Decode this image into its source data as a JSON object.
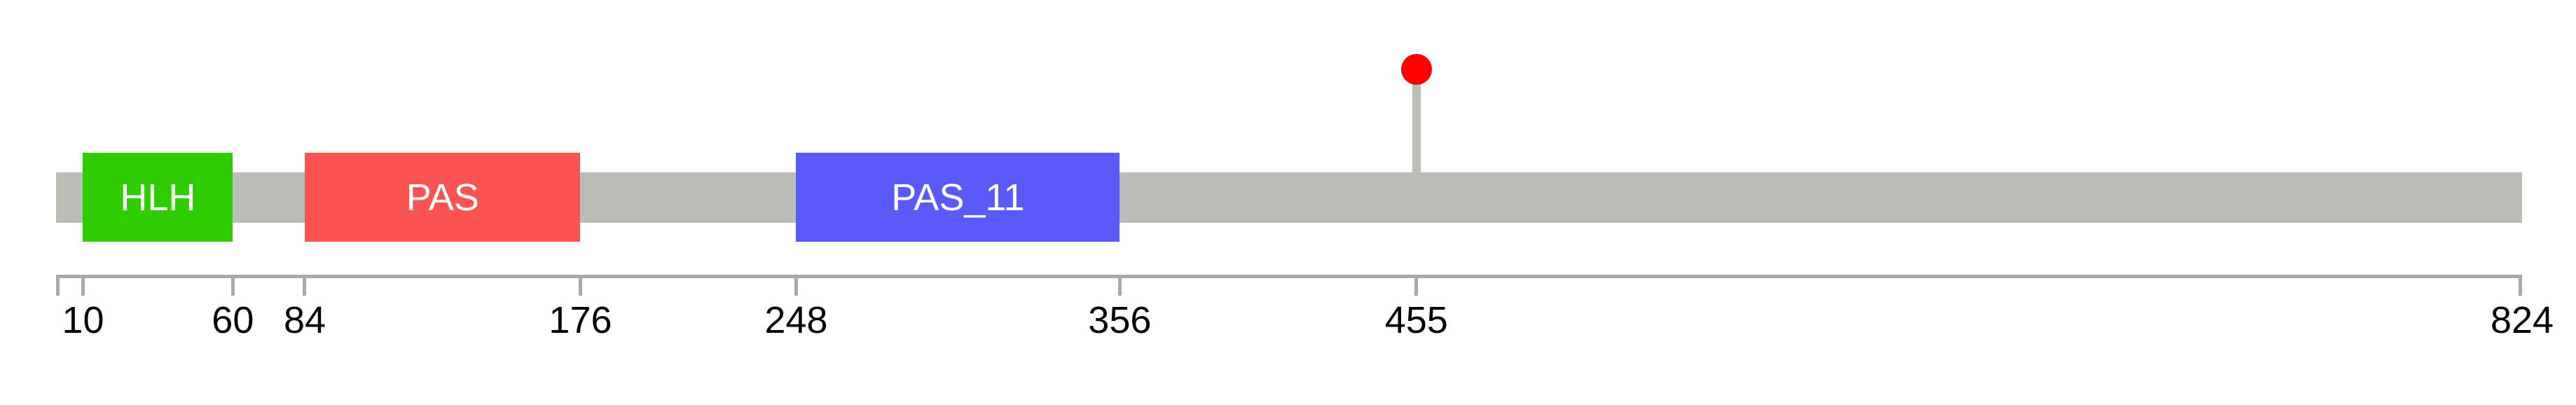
{
  "figure": {
    "background": "#FFFFFF"
  },
  "chart_data": {
    "type": "protein-domain-track",
    "title": "",
    "axis": {
      "min": 1,
      "max": 824,
      "tick_values": [
        10,
        60,
        84,
        176,
        248,
        356,
        455,
        824
      ],
      "has_start_end_caps": true,
      "line_color": "#A9A9A9",
      "label_color": "#000000"
    },
    "backbone": {
      "start": 1,
      "end": 824,
      "color": "#BBBEB6"
    },
    "domains": [
      {
        "label": "HLH",
        "start": 10,
        "end": 60,
        "color": "#2ECC00",
        "text_color": "#FFFFFF"
      },
      {
        "label": "PAS",
        "start": 84,
        "end": 176,
        "color": "#FB5252",
        "text_color": "#FFFFFF"
      },
      {
        "label": "PAS_11",
        "start": 248,
        "end": 356,
        "color": "#5A5AFA",
        "text_color": "#FFFFFF"
      }
    ],
    "markers": [
      {
        "position": 455,
        "shape": "circle",
        "head_color": "#FF0000",
        "stem_color": "#BBBEB6"
      }
    ]
  }
}
